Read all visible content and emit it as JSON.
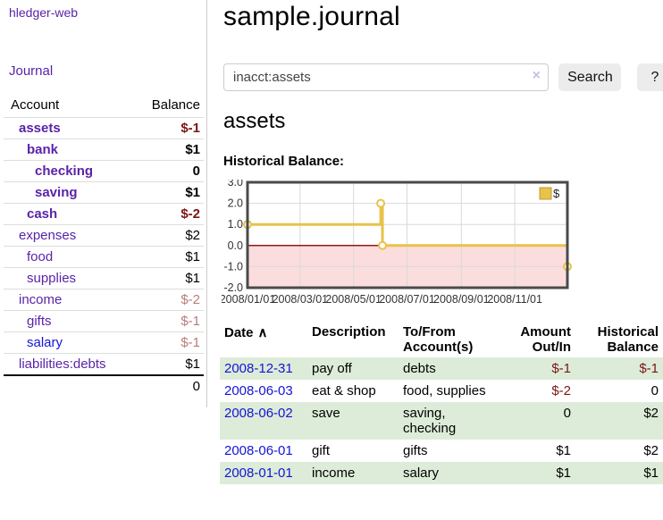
{
  "colors": {
    "link_purple": "#5a23a9",
    "link_blue": "#1414d6",
    "neg_strong": "#7c1515",
    "neg_muted": "#b87c7c",
    "row_green": "#ddecd8",
    "chart_gold": "#e8c24a",
    "chart_gold_border": "#c19b2e",
    "chart_negative_fill": "#fcdddd",
    "chart_zero_line": "#8b1a1a",
    "chart_grid": "#d9d9d9",
    "chart_border": "#4a4a4a"
  },
  "icons": {
    "clear_search": "×",
    "sort_ascending": "∧"
  },
  "brand": "hledger-web",
  "nav": {
    "journal_label": "Journal"
  },
  "accounts_panel": {
    "headers": {
      "account": "Account",
      "balance": "Balance"
    },
    "rows": [
      {
        "name": "assets",
        "depth": 0,
        "bold": true,
        "link": "purple",
        "balance": "$-1"
      },
      {
        "name": "bank",
        "depth": 1,
        "bold": true,
        "link": "purple",
        "balance": "$1"
      },
      {
        "name": "checking",
        "depth": 2,
        "bold": true,
        "link": "purple",
        "balance": "0"
      },
      {
        "name": "saving",
        "depth": 2,
        "bold": true,
        "link": "purple",
        "balance": "$1"
      },
      {
        "name": "cash",
        "depth": 1,
        "bold": true,
        "link": "purple",
        "balance": "$-2"
      },
      {
        "name": "expenses",
        "depth": 0,
        "bold": false,
        "link": "purple",
        "balance": "$2"
      },
      {
        "name": "food",
        "depth": 1,
        "bold": false,
        "link": "purple",
        "balance": "$1"
      },
      {
        "name": "supplies",
        "depth": 1,
        "bold": false,
        "link": "purple",
        "balance": "$1"
      },
      {
        "name": "income",
        "depth": 0,
        "bold": false,
        "link": "purple",
        "balance": "$-2"
      },
      {
        "name": "gifts",
        "depth": 1,
        "bold": false,
        "link": "purple",
        "balance": "$-1"
      },
      {
        "name": "salary",
        "depth": 1,
        "bold": false,
        "link": "blue",
        "balance": "$-1"
      },
      {
        "name": "liabilities:debts",
        "depth": 0,
        "bold": false,
        "link": "purple",
        "balance": "$1"
      }
    ],
    "total": "0"
  },
  "header": {
    "title": "sample.journal"
  },
  "search": {
    "value": "inacct:assets",
    "button_label": "Search",
    "help_label": "?"
  },
  "account_page": {
    "title": "assets",
    "chart_label": "Historical Balance:"
  },
  "chart_data": {
    "type": "line",
    "step": true,
    "title": "Historical Balance:",
    "series": [
      {
        "name": "$",
        "points": [
          [
            "2008-01-01",
            1
          ],
          [
            "2008-06-01",
            2
          ],
          [
            "2008-06-03",
            0
          ],
          [
            "2008-12-31",
            -1
          ]
        ]
      }
    ],
    "x_range": [
      "2008-01-01",
      "2008-12-31"
    ],
    "x_ticks": [
      "2008/01/01",
      "2008/03/01",
      "2008/05/01",
      "2008/07/01",
      "2008/09/01",
      "2008/11/01"
    ],
    "y_ticks": [
      "3.0",
      "2.0",
      "1.0",
      "0.0",
      "-1.0",
      "-2.0"
    ],
    "ylim": [
      -2,
      3
    ],
    "grid": true,
    "legend_position": "top-right"
  },
  "register": {
    "headers": [
      {
        "label": "Date",
        "sorted": true,
        "align": "left"
      },
      {
        "label": "Description",
        "align": "left"
      },
      {
        "label": "To/From Account(s)",
        "align": "left"
      },
      {
        "label": "Amount Out/In",
        "align": "right"
      },
      {
        "label": "Historical Balance",
        "align": "right"
      }
    ],
    "rows": [
      {
        "date": "2008-12-31",
        "description": "pay off",
        "accounts": "debts",
        "amount": "$-1",
        "balance": "$-1"
      },
      {
        "date": "2008-06-03",
        "description": "eat & shop",
        "accounts": "food, supplies",
        "amount": "$-2",
        "balance": "0"
      },
      {
        "date": "2008-06-02",
        "description": "save",
        "accounts": "saving, checking",
        "amount": "0",
        "balance": "$2"
      },
      {
        "date": "2008-06-01",
        "description": "gift",
        "accounts": "gifts",
        "amount": "$1",
        "balance": "$2"
      },
      {
        "date": "2008-01-01",
        "description": "income",
        "accounts": "salary",
        "amount": "$1",
        "balance": "$1"
      }
    ]
  }
}
